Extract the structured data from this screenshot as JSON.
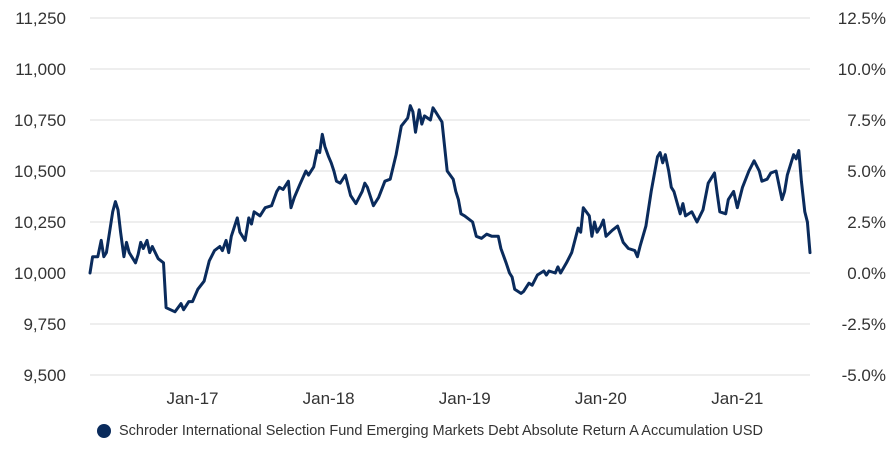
{
  "chart_data": {
    "type": "line",
    "title": "",
    "xlabel": "",
    "ylabel": "",
    "xlim": [
      "2016-04-01",
      "2021-07-15"
    ],
    "ylim": [
      9500,
      11250
    ],
    "y2lim": [
      -5.0,
      12.5
    ],
    "grid": true,
    "legend_position": "bottom",
    "y_ticks": [
      "9,500",
      "9,750",
      "10,000",
      "10,250",
      "10,500",
      "10,750",
      "11,000",
      "11,250"
    ],
    "y2_ticks": [
      "-5.0%",
      "-2.5%",
      "0.0%",
      "2.5%",
      "5.0%",
      "7.5%",
      "10.0%",
      "12.5%"
    ],
    "x_ticks": [
      "Jan-17",
      "Jan-18",
      "Jan-19",
      "Jan-20",
      "Jan-21"
    ],
    "x_tick_dates": [
      "2017-01-01",
      "2018-01-01",
      "2019-01-01",
      "2020-01-01",
      "2021-01-01"
    ],
    "series": [
      {
        "name": "Schroder International Selection Fund Emerging Markets Debt Absolute Return A Accumulation USD",
        "color": "#0a2b5c",
        "points": [
          [
            "2016-04-01",
            10000
          ],
          [
            "2016-04-08",
            10080
          ],
          [
            "2016-04-22",
            10080
          ],
          [
            "2016-05-01",
            10160
          ],
          [
            "2016-05-08",
            10080
          ],
          [
            "2016-05-15",
            10100
          ],
          [
            "2016-06-01",
            10300
          ],
          [
            "2016-06-08",
            10350
          ],
          [
            "2016-06-15",
            10310
          ],
          [
            "2016-06-22",
            10200
          ],
          [
            "2016-07-01",
            10080
          ],
          [
            "2016-07-08",
            10150
          ],
          [
            "2016-07-15",
            10100
          ],
          [
            "2016-08-01",
            10050
          ],
          [
            "2016-08-08",
            10090
          ],
          [
            "2016-08-15",
            10150
          ],
          [
            "2016-08-22",
            10120
          ],
          [
            "2016-09-01",
            10160
          ],
          [
            "2016-09-08",
            10100
          ],
          [
            "2016-09-15",
            10130
          ],
          [
            "2016-10-01",
            10070
          ],
          [
            "2016-10-15",
            10050
          ],
          [
            "2016-10-22",
            9830
          ],
          [
            "2016-11-15",
            9810
          ],
          [
            "2016-12-01",
            9850
          ],
          [
            "2016-12-08",
            9820
          ],
          [
            "2016-12-22",
            9860
          ],
          [
            "2017-01-01",
            9860
          ],
          [
            "2017-01-15",
            9920
          ],
          [
            "2017-02-01",
            9960
          ],
          [
            "2017-02-15",
            10060
          ],
          [
            "2017-03-01",
            10110
          ],
          [
            "2017-03-15",
            10130
          ],
          [
            "2017-03-22",
            10110
          ],
          [
            "2017-04-01",
            10160
          ],
          [
            "2017-04-08",
            10100
          ],
          [
            "2017-04-15",
            10180
          ],
          [
            "2017-05-01",
            10270
          ],
          [
            "2017-05-08",
            10200
          ],
          [
            "2017-05-22",
            10160
          ],
          [
            "2017-06-01",
            10270
          ],
          [
            "2017-06-08",
            10240
          ],
          [
            "2017-06-15",
            10300
          ],
          [
            "2017-07-01",
            10280
          ],
          [
            "2017-07-15",
            10320
          ],
          [
            "2017-08-01",
            10330
          ],
          [
            "2017-08-15",
            10400
          ],
          [
            "2017-08-22",
            10420
          ],
          [
            "2017-09-01",
            10410
          ],
          [
            "2017-09-15",
            10450
          ],
          [
            "2017-09-22",
            10320
          ],
          [
            "2017-10-01",
            10370
          ],
          [
            "2017-10-15",
            10430
          ],
          [
            "2017-11-01",
            10500
          ],
          [
            "2017-11-08",
            10480
          ],
          [
            "2017-11-22",
            10520
          ],
          [
            "2017-12-01",
            10600
          ],
          [
            "2017-12-08",
            10590
          ],
          [
            "2017-12-15",
            10680
          ],
          [
            "2017-12-22",
            10620
          ],
          [
            "2018-01-01",
            10570
          ],
          [
            "2018-01-08",
            10540
          ],
          [
            "2018-01-15",
            10500
          ],
          [
            "2018-01-22",
            10450
          ],
          [
            "2018-02-01",
            10440
          ],
          [
            "2018-02-15",
            10480
          ],
          [
            "2018-03-01",
            10380
          ],
          [
            "2018-03-15",
            10340
          ],
          [
            "2018-04-01",
            10400
          ],
          [
            "2018-04-08",
            10440
          ],
          [
            "2018-04-15",
            10420
          ],
          [
            "2018-05-01",
            10330
          ],
          [
            "2018-05-15",
            10370
          ],
          [
            "2018-06-01",
            10450
          ],
          [
            "2018-06-15",
            10460
          ],
          [
            "2018-07-01",
            10580
          ],
          [
            "2018-07-15",
            10720
          ],
          [
            "2018-08-01",
            10760
          ],
          [
            "2018-08-08",
            10820
          ],
          [
            "2018-08-15",
            10790
          ],
          [
            "2018-08-22",
            10690
          ],
          [
            "2018-09-01",
            10800
          ],
          [
            "2018-09-08",
            10730
          ],
          [
            "2018-09-15",
            10770
          ],
          [
            "2018-10-01",
            10750
          ],
          [
            "2018-10-08",
            10810
          ],
          [
            "2018-10-15",
            10790
          ],
          [
            "2018-11-01",
            10740
          ],
          [
            "2018-11-15",
            10500
          ],
          [
            "2018-12-01",
            10460
          ],
          [
            "2018-12-08",
            10400
          ],
          [
            "2018-12-15",
            10360
          ],
          [
            "2018-12-22",
            10290
          ],
          [
            "2019-01-01",
            10280
          ],
          [
            "2019-01-08",
            10270
          ],
          [
            "2019-01-22",
            10250
          ],
          [
            "2019-02-01",
            10180
          ],
          [
            "2019-02-15",
            10170
          ],
          [
            "2019-03-01",
            10190
          ],
          [
            "2019-03-15",
            10180
          ],
          [
            "2019-04-01",
            10180
          ],
          [
            "2019-04-08",
            10120
          ],
          [
            "2019-04-22",
            10050
          ],
          [
            "2019-05-01",
            10000
          ],
          [
            "2019-05-08",
            9980
          ],
          [
            "2019-05-15",
            9920
          ],
          [
            "2019-06-01",
            9900
          ],
          [
            "2019-06-08",
            9910
          ],
          [
            "2019-06-22",
            9950
          ],
          [
            "2019-07-01",
            9940
          ],
          [
            "2019-07-15",
            9990
          ],
          [
            "2019-08-01",
            10010
          ],
          [
            "2019-08-08",
            9990
          ],
          [
            "2019-08-15",
            10010
          ],
          [
            "2019-09-01",
            10000
          ],
          [
            "2019-09-08",
            10030
          ],
          [
            "2019-09-15",
            10000
          ],
          [
            "2019-10-01",
            10050
          ],
          [
            "2019-10-15",
            10100
          ],
          [
            "2019-11-01",
            10220
          ],
          [
            "2019-11-08",
            10200
          ],
          [
            "2019-11-15",
            10320
          ],
          [
            "2019-12-01",
            10280
          ],
          [
            "2019-12-08",
            10180
          ],
          [
            "2019-12-15",
            10250
          ],
          [
            "2019-12-22",
            10200
          ],
          [
            "2020-01-01",
            10230
          ],
          [
            "2020-01-08",
            10260
          ],
          [
            "2020-01-15",
            10180
          ],
          [
            "2020-02-01",
            10210
          ],
          [
            "2020-02-15",
            10230
          ],
          [
            "2020-03-01",
            10150
          ],
          [
            "2020-03-15",
            10120
          ],
          [
            "2020-04-01",
            10110
          ],
          [
            "2020-04-08",
            10080
          ],
          [
            "2020-04-15",
            10130
          ],
          [
            "2020-05-01",
            10230
          ],
          [
            "2020-05-15",
            10400
          ],
          [
            "2020-06-01",
            10570
          ],
          [
            "2020-06-08",
            10590
          ],
          [
            "2020-06-15",
            10540
          ],
          [
            "2020-06-22",
            10580
          ],
          [
            "2020-07-01",
            10500
          ],
          [
            "2020-07-08",
            10420
          ],
          [
            "2020-07-15",
            10400
          ],
          [
            "2020-08-01",
            10290
          ],
          [
            "2020-08-08",
            10340
          ],
          [
            "2020-08-15",
            10280
          ],
          [
            "2020-09-01",
            10300
          ],
          [
            "2020-09-15",
            10250
          ],
          [
            "2020-10-01",
            10310
          ],
          [
            "2020-10-15",
            10440
          ],
          [
            "2020-11-01",
            10490
          ],
          [
            "2020-11-08",
            10390
          ],
          [
            "2020-11-15",
            10300
          ],
          [
            "2020-12-01",
            10290
          ],
          [
            "2020-12-08",
            10360
          ],
          [
            "2020-12-22",
            10400
          ],
          [
            "2021-01-01",
            10320
          ],
          [
            "2021-01-15",
            10420
          ],
          [
            "2021-02-01",
            10500
          ],
          [
            "2021-02-15",
            10550
          ],
          [
            "2021-03-01",
            10500
          ],
          [
            "2021-03-08",
            10450
          ],
          [
            "2021-03-22",
            10460
          ],
          [
            "2021-04-01",
            10490
          ],
          [
            "2021-04-15",
            10500
          ],
          [
            "2021-05-01",
            10360
          ],
          [
            "2021-05-08",
            10400
          ],
          [
            "2021-05-15",
            10480
          ],
          [
            "2021-06-01",
            10580
          ],
          [
            "2021-06-08",
            10560
          ],
          [
            "2021-06-15",
            10600
          ],
          [
            "2021-06-22",
            10450
          ],
          [
            "2021-07-01",
            10300
          ],
          [
            "2021-07-08",
            10250
          ],
          [
            "2021-07-15",
            10100
          ]
        ]
      }
    ]
  }
}
